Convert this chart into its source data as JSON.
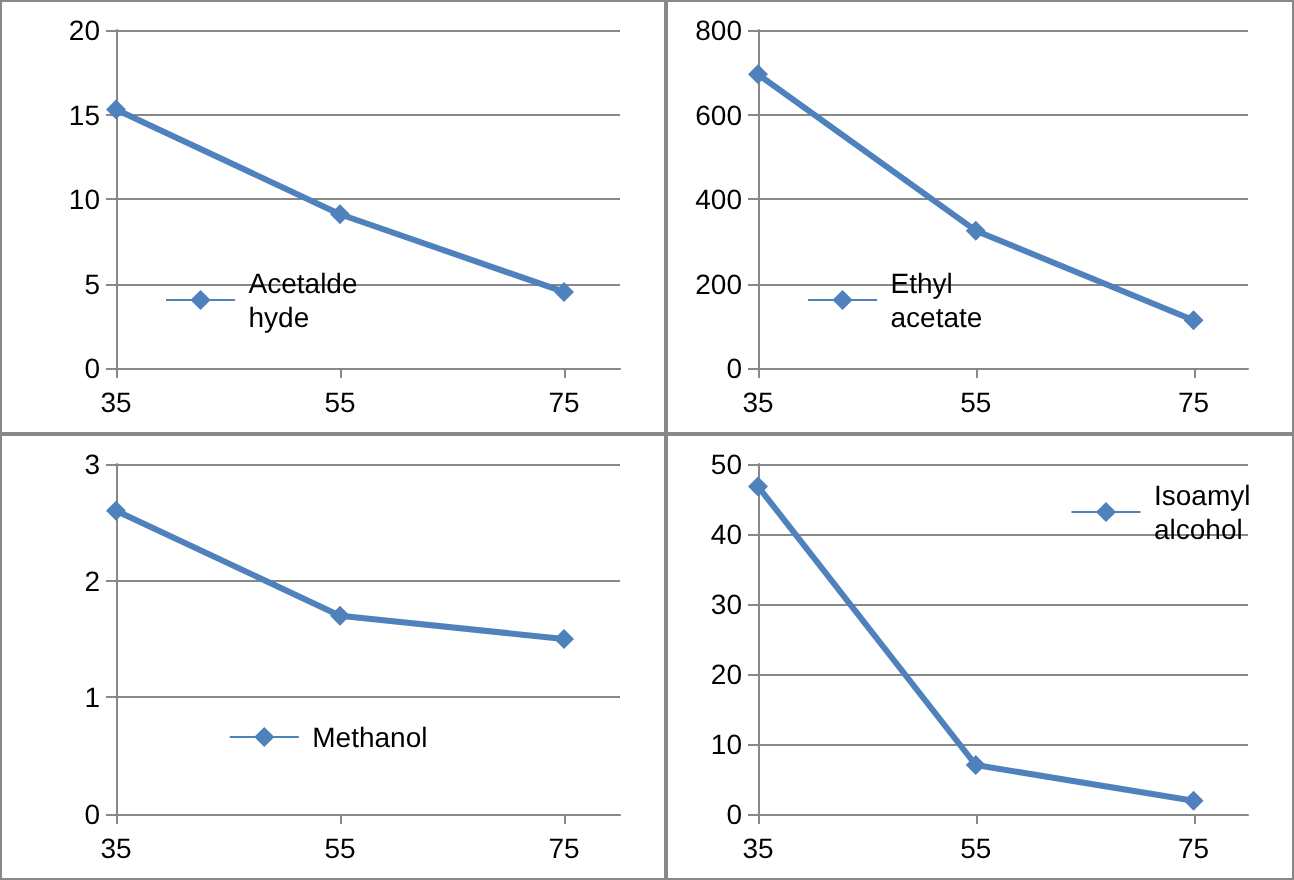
{
  "chart_data": [
    {
      "type": "line",
      "x": [
        35,
        55,
        75
      ],
      "xlim": [
        35,
        80
      ],
      "xticks": [
        35,
        55,
        75
      ],
      "ylim": [
        0,
        20
      ],
      "yticks": [
        0,
        5,
        10,
        15,
        20
      ],
      "grid": "y",
      "legend": "bottom left",
      "marker": "diamond",
      "line_style": "solid",
      "series": [
        {
          "name": "Acetaldehyde",
          "color": "#4f81bd",
          "values": [
            15.3,
            9.1,
            4.5
          ]
        }
      ]
    },
    {
      "type": "line",
      "x": [
        35,
        55,
        75
      ],
      "xlim": [
        35,
        80
      ],
      "xticks": [
        35,
        55,
        75
      ],
      "ylim": [
        0,
        800
      ],
      "yticks": [
        0,
        200,
        400,
        600,
        800
      ],
      "grid": "y",
      "legend": "bottom left",
      "marker": "diamond",
      "line_style": "solid",
      "series": [
        {
          "name": "Ethyl acetate",
          "color": "#4f81bd",
          "values": [
            695,
            325,
            113
          ]
        }
      ]
    },
    {
      "type": "line",
      "x": [
        35,
        55,
        75
      ],
      "xlim": [
        35,
        80
      ],
      "xticks": [
        35,
        55,
        75
      ],
      "ylim": [
        0,
        3
      ],
      "yticks": [
        0,
        1,
        2,
        3
      ],
      "grid": "y",
      "legend": "bottom",
      "marker": "diamond",
      "line_style": "solid",
      "series": [
        {
          "name": "Methanol",
          "color": "#4f81bd",
          "values": [
            2.6,
            1.7,
            1.5
          ]
        }
      ]
    },
    {
      "type": "line",
      "x": [
        35,
        55,
        75
      ],
      "xlim": [
        35,
        80
      ],
      "xticks": [
        35,
        55,
        75
      ],
      "ylim": [
        0,
        50
      ],
      "yticks": [
        0,
        10,
        20,
        30,
        40,
        50
      ],
      "grid": "y",
      "legend": "top right",
      "marker": "diamond",
      "line_style": "solid",
      "series": [
        {
          "name": "Isoamyl alcohol",
          "color": "#4f81bd",
          "values": [
            46.8,
            7,
            1.9
          ]
        }
      ]
    }
  ]
}
